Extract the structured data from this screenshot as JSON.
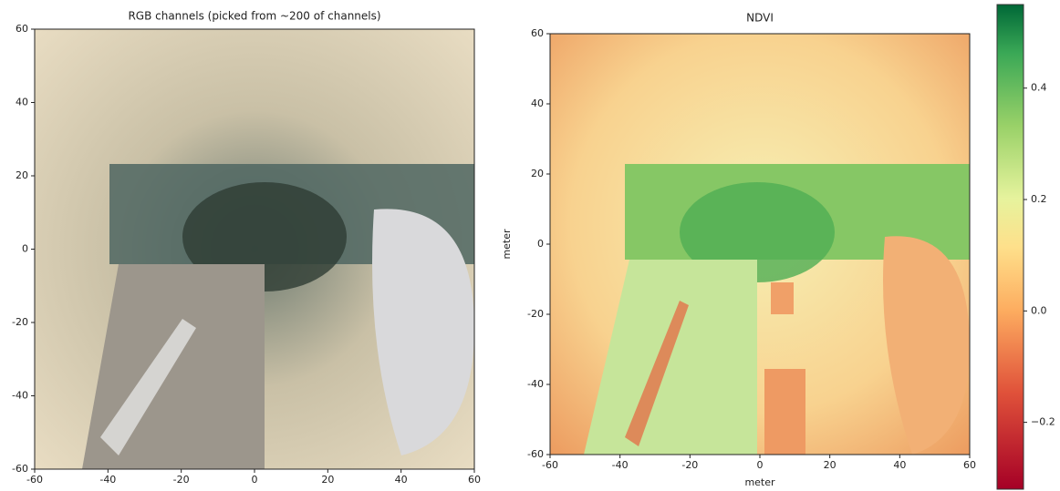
{
  "chart_data": [
    {
      "type": "image",
      "title": "RGB channels (picked from ~200 of channels)",
      "xlim": [
        -60,
        60
      ],
      "ylim": [
        -60,
        60
      ],
      "xticks": [
        -60,
        -40,
        -20,
        0,
        20,
        40,
        60
      ],
      "yticks": [
        -60,
        -40,
        -20,
        0,
        20,
        40,
        60
      ]
    },
    {
      "type": "heatmap",
      "title": "NDVI",
      "x_label": "meter",
      "y_label": "meter",
      "xlim": [
        -60,
        60
      ],
      "ylim": [
        -60,
        60
      ],
      "xticks": [
        -60,
        -40,
        -20,
        0,
        20,
        40,
        60
      ],
      "yticks": [
        -60,
        -40,
        -20,
        0,
        20,
        40,
        60
      ],
      "colormap": "RdYlGn",
      "clim": [
        -0.32,
        0.55
      ],
      "cticks": [
        {
          "value": -0.2,
          "label": "−0.2"
        },
        {
          "value": 0,
          "label": "0.0"
        },
        0.2,
        0.4
      ]
    }
  ]
}
